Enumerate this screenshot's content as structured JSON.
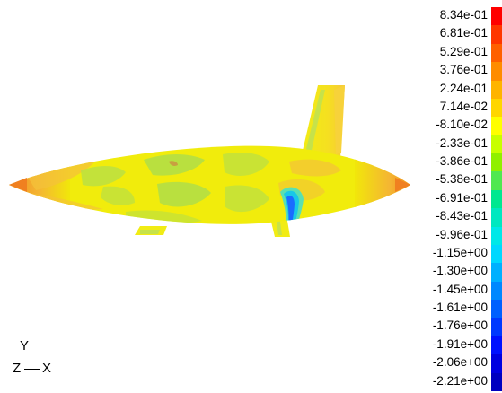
{
  "legend": {
    "labels": [
      "8.34e-01",
      "6.81e-01",
      "5.29e-01",
      "3.76e-01",
      "2.24e-01",
      "7.14e-02",
      "-8.10e-02",
      "-2.33e-01",
      "-3.86e-01",
      "-5.38e-01",
      "-6.91e-01",
      "-8.43e-01",
      "-9.96e-01",
      "-1.15e+00",
      "-1.30e+00",
      "-1.45e+00",
      "-1.61e+00",
      "-1.76e+00",
      "-1.91e+00",
      "-2.06e+00",
      "-2.21e+00"
    ],
    "colors": [
      "#ff0000",
      "#ff3600",
      "#ff6000",
      "#ff8c00",
      "#ffb400",
      "#ffd600",
      "#ffff00",
      "#c8ff00",
      "#90f000",
      "#50e850",
      "#00e890",
      "#00e8c0",
      "#00e8e8",
      "#00d8ff",
      "#00b0ff",
      "#0088ff",
      "#0060ff",
      "#0038ff",
      "#0010ff",
      "#0000e0",
      "#0000c0"
    ]
  },
  "axes": {
    "y": "Y",
    "z": "Z",
    "x": "X"
  },
  "colors": {
    "body_base": "#f0f000",
    "orange": "#f6a52a",
    "light_orange": "#f4c23a",
    "green": "#b8e046",
    "blue": "#1a8cff"
  }
}
